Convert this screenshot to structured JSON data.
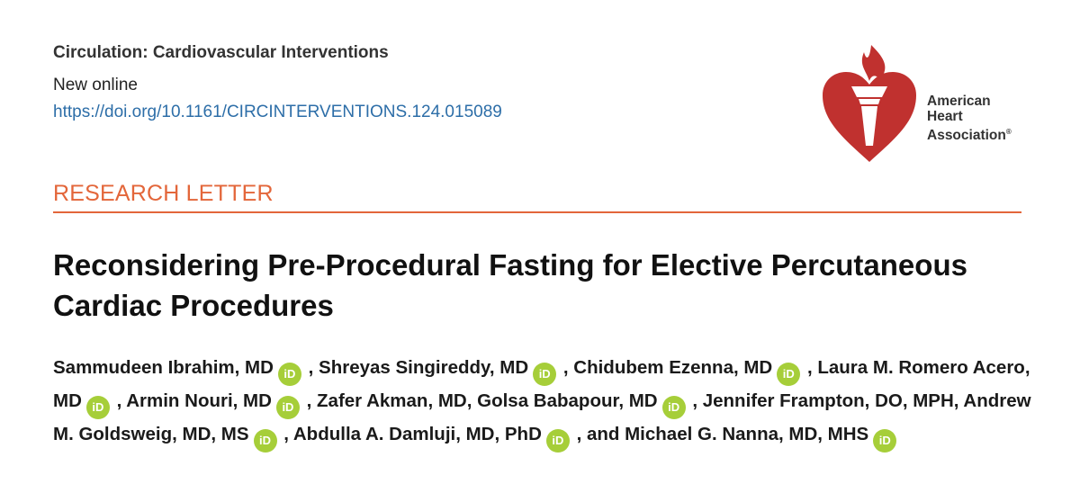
{
  "header": {
    "journal": "Circulation: Cardiovascular Interventions",
    "status": "New online",
    "doi": "https://doi.org/10.1161/CIRCINTERVENTIONS.124.015089"
  },
  "logo": {
    "line1": "American",
    "line2": "Heart",
    "line3": "Association",
    "mark": "®",
    "colors": {
      "heart": "#c0312f",
      "torch": "#ffffff"
    }
  },
  "section_label": "RESEARCH LETTER",
  "title": "Reconsidering Pre-Procedural Fasting for Elective Percutaneous Cardiac Procedures",
  "orcid_icon": {
    "label": "iD",
    "color": "#a6ce39"
  },
  "authors": [
    {
      "name": "Sammudeen Ibrahim, MD",
      "orcid": true,
      "sep": ", "
    },
    {
      "name": "Shreyas Singireddy, MD",
      "orcid": true,
      "sep": ", "
    },
    {
      "name": "Chidubem Ezenna, MD",
      "orcid": true,
      "sep": ", "
    },
    {
      "name": "Laura M. Romero Acero, MD",
      "orcid": true,
      "sep": ", "
    },
    {
      "name": "Armin Nouri, MD",
      "orcid": true,
      "sep": ", "
    },
    {
      "name": "Zafer Akman, MD",
      "orcid": false,
      "sep": ", "
    },
    {
      "name": "Golsa Babapour, MD",
      "orcid": true,
      "sep": ", "
    },
    {
      "name": "Jennifer Frampton, DO, MPH",
      "orcid": false,
      "sep": ", "
    },
    {
      "name": "Andrew M. Goldsweig, MD, MS",
      "orcid": true,
      "sep": ", "
    },
    {
      "name": "Abdulla A. Damluji, MD, PhD",
      "orcid": true,
      "sep": ", and "
    },
    {
      "name": "Michael G. Nanna, MD, MHS",
      "orcid": true,
      "sep": ""
    }
  ]
}
